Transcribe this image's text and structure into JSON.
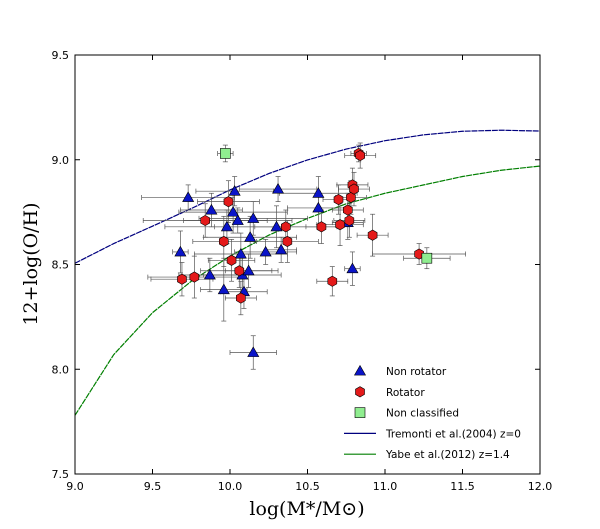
{
  "chart_data": {
    "type": "scatter",
    "title": "",
    "xlabel": "log(M*/M⊙)",
    "ylabel": "12+log(O/H)",
    "xlim": [
      9.0,
      12.0
    ],
    "ylim": [
      7.5,
      9.5
    ],
    "x_ticks": [
      "9.0",
      "9.5",
      "10.0",
      "10.5",
      "11.0",
      "11.5",
      "12.0"
    ],
    "y_ticks": [
      "7.5",
      "8.0",
      "8.5",
      "9.0",
      "9.5"
    ],
    "grid": false,
    "legend_position": "lower-right",
    "series": [
      {
        "name": "Non rotator",
        "marker": "triangle",
        "color": "#0a14c8",
        "points": [
          {
            "x": 9.68,
            "y": 8.56,
            "xerr": 0.05,
            "yerr": 0.1
          },
          {
            "x": 9.73,
            "y": 8.82,
            "xerr": 0.3,
            "yerr": 0.06
          },
          {
            "x": 9.87,
            "y": 8.45,
            "xerr": 0.2,
            "yerr": 0.08
          },
          {
            "x": 9.88,
            "y": 8.76,
            "xerr": 0.2,
            "yerr": 0.08
          },
          {
            "x": 9.96,
            "y": 8.38,
            "xerr": 0.15,
            "yerr": 0.15
          },
          {
            "x": 9.98,
            "y": 8.68,
            "xerr": 0.4,
            "yerr": 0.08
          },
          {
            "x": 10.02,
            "y": 8.75,
            "xerr": 0.35,
            "yerr": 0.1
          },
          {
            "x": 10.03,
            "y": 8.85,
            "xerr": 0.25,
            "yerr": 0.07
          },
          {
            "x": 10.05,
            "y": 8.71,
            "xerr": 0.35,
            "yerr": 0.06
          },
          {
            "x": 10.07,
            "y": 8.55,
            "xerr": 0.3,
            "yerr": 0.1
          },
          {
            "x": 10.08,
            "y": 8.45,
            "xerr": 0.25,
            "yerr": 0.08
          },
          {
            "x": 10.09,
            "y": 8.37,
            "xerr": 0.15,
            "yerr": 0.08
          },
          {
            "x": 10.12,
            "y": 8.47,
            "xerr": 0.15,
            "yerr": 0.08
          },
          {
            "x": 10.13,
            "y": 8.63,
            "xerr": 0.3,
            "yerr": 0.1
          },
          {
            "x": 10.15,
            "y": 8.72,
            "xerr": 0.35,
            "yerr": 0.08
          },
          {
            "x": 10.15,
            "y": 8.08,
            "xerr": 0.15,
            "yerr": 0.08
          },
          {
            "x": 10.23,
            "y": 8.56,
            "xerr": 0.2,
            "yerr": 0.06
          },
          {
            "x": 10.3,
            "y": 8.68,
            "xerr": 0.4,
            "yerr": 0.1
          },
          {
            "x": 10.31,
            "y": 8.86,
            "xerr": 0.25,
            "yerr": 0.06
          },
          {
            "x": 10.33,
            "y": 8.57,
            "xerr": 0.1,
            "yerr": 0.06
          },
          {
            "x": 10.57,
            "y": 8.84,
            "xerr": 0.25,
            "yerr": 0.08
          },
          {
            "x": 10.57,
            "y": 8.77,
            "xerr": 0.2,
            "yerr": 0.08
          },
          {
            "x": 10.76,
            "y": 8.7,
            "xerr": 0.1,
            "yerr": 0.08
          },
          {
            "x": 10.79,
            "y": 8.48,
            "xerr": 0.05,
            "yerr": 0.08
          }
        ]
      },
      {
        "name": "Rotator",
        "marker": "hexagon",
        "color": "#e41a1a",
        "points": [
          {
            "x": 9.69,
            "y": 8.43,
            "xerr": 0.2,
            "yerr": 0.08
          },
          {
            "x": 9.77,
            "y": 8.44,
            "xerr": 0.3,
            "yerr": 0.1
          },
          {
            "x": 9.84,
            "y": 8.71,
            "xerr": 0.4,
            "yerr": 0.08
          },
          {
            "x": 9.96,
            "y": 8.61,
            "xerr": 0.2,
            "yerr": 0.12
          },
          {
            "x": 9.99,
            "y": 8.8,
            "xerr": 0.2,
            "yerr": 0.1
          },
          {
            "x": 10.01,
            "y": 8.52,
            "xerr": 0.15,
            "yerr": 0.1
          },
          {
            "x": 10.06,
            "y": 8.47,
            "xerr": 0.25,
            "yerr": 0.08
          },
          {
            "x": 10.07,
            "y": 8.34,
            "xerr": 0.1,
            "yerr": 0.08
          },
          {
            "x": 10.36,
            "y": 8.68,
            "xerr": 0.2,
            "yerr": 0.08
          },
          {
            "x": 10.37,
            "y": 8.61,
            "xerr": 0.2,
            "yerr": 0.1
          },
          {
            "x": 10.59,
            "y": 8.68,
            "xerr": 0.1,
            "yerr": 0.08
          },
          {
            "x": 10.66,
            "y": 8.42,
            "xerr": 0.1,
            "yerr": 0.07
          },
          {
            "x": 10.7,
            "y": 8.81,
            "xerr": 0.1,
            "yerr": 0.07
          },
          {
            "x": 10.71,
            "y": 8.69,
            "xerr": 0.15,
            "yerr": 0.1
          },
          {
            "x": 10.76,
            "y": 8.76,
            "xerr": 0.1,
            "yerr": 0.08
          },
          {
            "x": 10.77,
            "y": 8.71,
            "xerr": 0.1,
            "yerr": 0.08
          },
          {
            "x": 10.78,
            "y": 8.82,
            "xerr": 0.1,
            "yerr": 0.08
          },
          {
            "x": 10.79,
            "y": 8.88,
            "xerr": 0.1,
            "yerr": 0.08
          },
          {
            "x": 10.8,
            "y": 8.86,
            "xerr": 0.1,
            "yerr": 0.08
          },
          {
            "x": 10.83,
            "y": 9.03,
            "xerr": 0.05,
            "yerr": 0.04
          },
          {
            "x": 10.84,
            "y": 9.02,
            "xerr": 0.1,
            "yerr": 0.06
          },
          {
            "x": 10.92,
            "y": 8.64,
            "xerr": 0.1,
            "yerr": 0.1
          },
          {
            "x": 11.22,
            "y": 8.55,
            "xerr": 0.3,
            "yerr": 0.05
          }
        ]
      },
      {
        "name": "Non classified",
        "marker": "square",
        "color": "#90ee90",
        "points": [
          {
            "x": 9.97,
            "y": 9.03,
            "xerr": 0.05,
            "yerr": 0.04
          },
          {
            "x": 11.27,
            "y": 8.53,
            "xerr": 0.15,
            "yerr": 0.05
          }
        ]
      }
    ],
    "curves": [
      {
        "name": "Tremonti et al.(2004) z=0",
        "color": "#00007f",
        "style": "dashed",
        "x": [
          9.0,
          9.25,
          9.5,
          9.75,
          10.0,
          10.25,
          10.5,
          10.75,
          11.0,
          11.25,
          11.5,
          11.75,
          12.0
        ],
        "y": [
          8.506,
          8.6,
          8.683,
          8.767,
          8.856,
          8.934,
          8.999,
          9.051,
          9.091,
          9.119,
          9.136,
          9.141,
          9.137
        ]
      },
      {
        "name": "Yabe et al.(2012) z=1.4",
        "color": "#007f00",
        "style": "dashed",
        "x": [
          9.0,
          9.25,
          9.5,
          9.75,
          10.0,
          10.25,
          10.5,
          10.75,
          11.0,
          11.25,
          11.5,
          11.75,
          12.0
        ],
        "y": [
          7.78,
          8.07,
          8.27,
          8.42,
          8.54,
          8.64,
          8.72,
          8.79,
          8.84,
          8.88,
          8.92,
          8.95,
          8.97
        ]
      }
    ]
  }
}
